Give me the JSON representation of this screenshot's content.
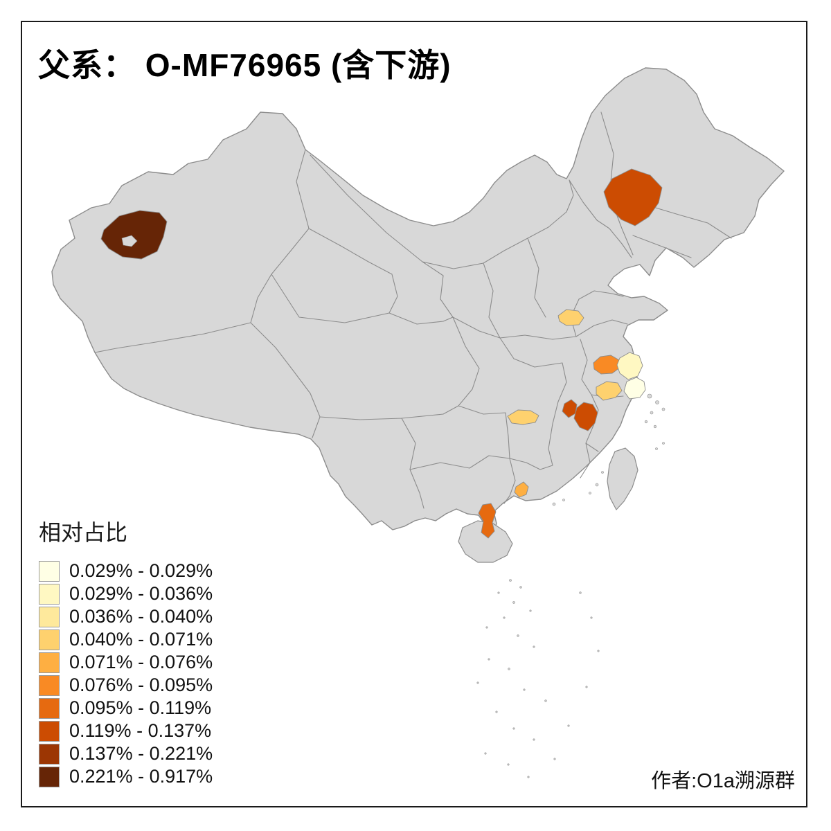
{
  "title": "父系： O-MF76965 (含下游)",
  "author": "作者:O1a溯源群",
  "legend": {
    "title": "相对占比",
    "items": [
      {
        "label": "0.029% - 0.029%",
        "color": "#FFFFE5"
      },
      {
        "label": "0.029% - 0.036%",
        "color": "#FFF8C2"
      },
      {
        "label": "0.036% - 0.040%",
        "color": "#FEE99C"
      },
      {
        "label": "0.040% - 0.071%",
        "color": "#FED16E"
      },
      {
        "label": "0.071% - 0.076%",
        "color": "#FEAF42"
      },
      {
        "label": "0.076% - 0.095%",
        "color": "#F98A24"
      },
      {
        "label": "0.095% - 0.119%",
        "color": "#E66A10"
      },
      {
        "label": "0.119% - 0.137%",
        "color": "#CC4C02"
      },
      {
        "label": "0.137% - 0.221%",
        "color": "#9C3603"
      },
      {
        "label": "0.221% - 0.917%",
        "color": "#662506"
      }
    ]
  },
  "map": {
    "base_fill": "#D8D8D8",
    "border_color": "#8C8C8C",
    "background": "#FFFFFF",
    "regions": [
      {
        "id": "kashgar-xinjiang",
        "range": "0.221% - 0.917%",
        "color": "#662506"
      },
      {
        "id": "northeast-heilongjiang",
        "range": "0.119% - 0.137%",
        "color": "#CC4C02"
      },
      {
        "id": "north-jiangsu",
        "range": "0.040% - 0.071%",
        "color": "#FED16E"
      },
      {
        "id": "central-jiangsu",
        "range": "0.076% - 0.095%",
        "color": "#F98A24"
      },
      {
        "id": "coastal-jiangsu-north",
        "range": "0.029% - 0.036%",
        "color": "#FFF8C2"
      },
      {
        "id": "coastal-shanghai",
        "range": "0.029% - 0.029%",
        "color": "#FFFFE5"
      },
      {
        "id": "south-jiangsu",
        "range": "0.040% - 0.071%",
        "color": "#FED16E"
      },
      {
        "id": "northwest-jiangxi",
        "range": "0.119% - 0.137%",
        "color": "#CC4C02"
      },
      {
        "id": "north-jiangxi",
        "range": "0.119% - 0.137%",
        "color": "#CC4C02"
      },
      {
        "id": "hunan-prefecture",
        "range": "0.040% - 0.071%",
        "color": "#FED16E"
      },
      {
        "id": "guangdong-prefecture",
        "range": "0.071% - 0.076%",
        "color": "#FEAF42"
      },
      {
        "id": "leizhou-guangdong",
        "range": "0.095% - 0.119%",
        "color": "#E66A10"
      }
    ]
  }
}
